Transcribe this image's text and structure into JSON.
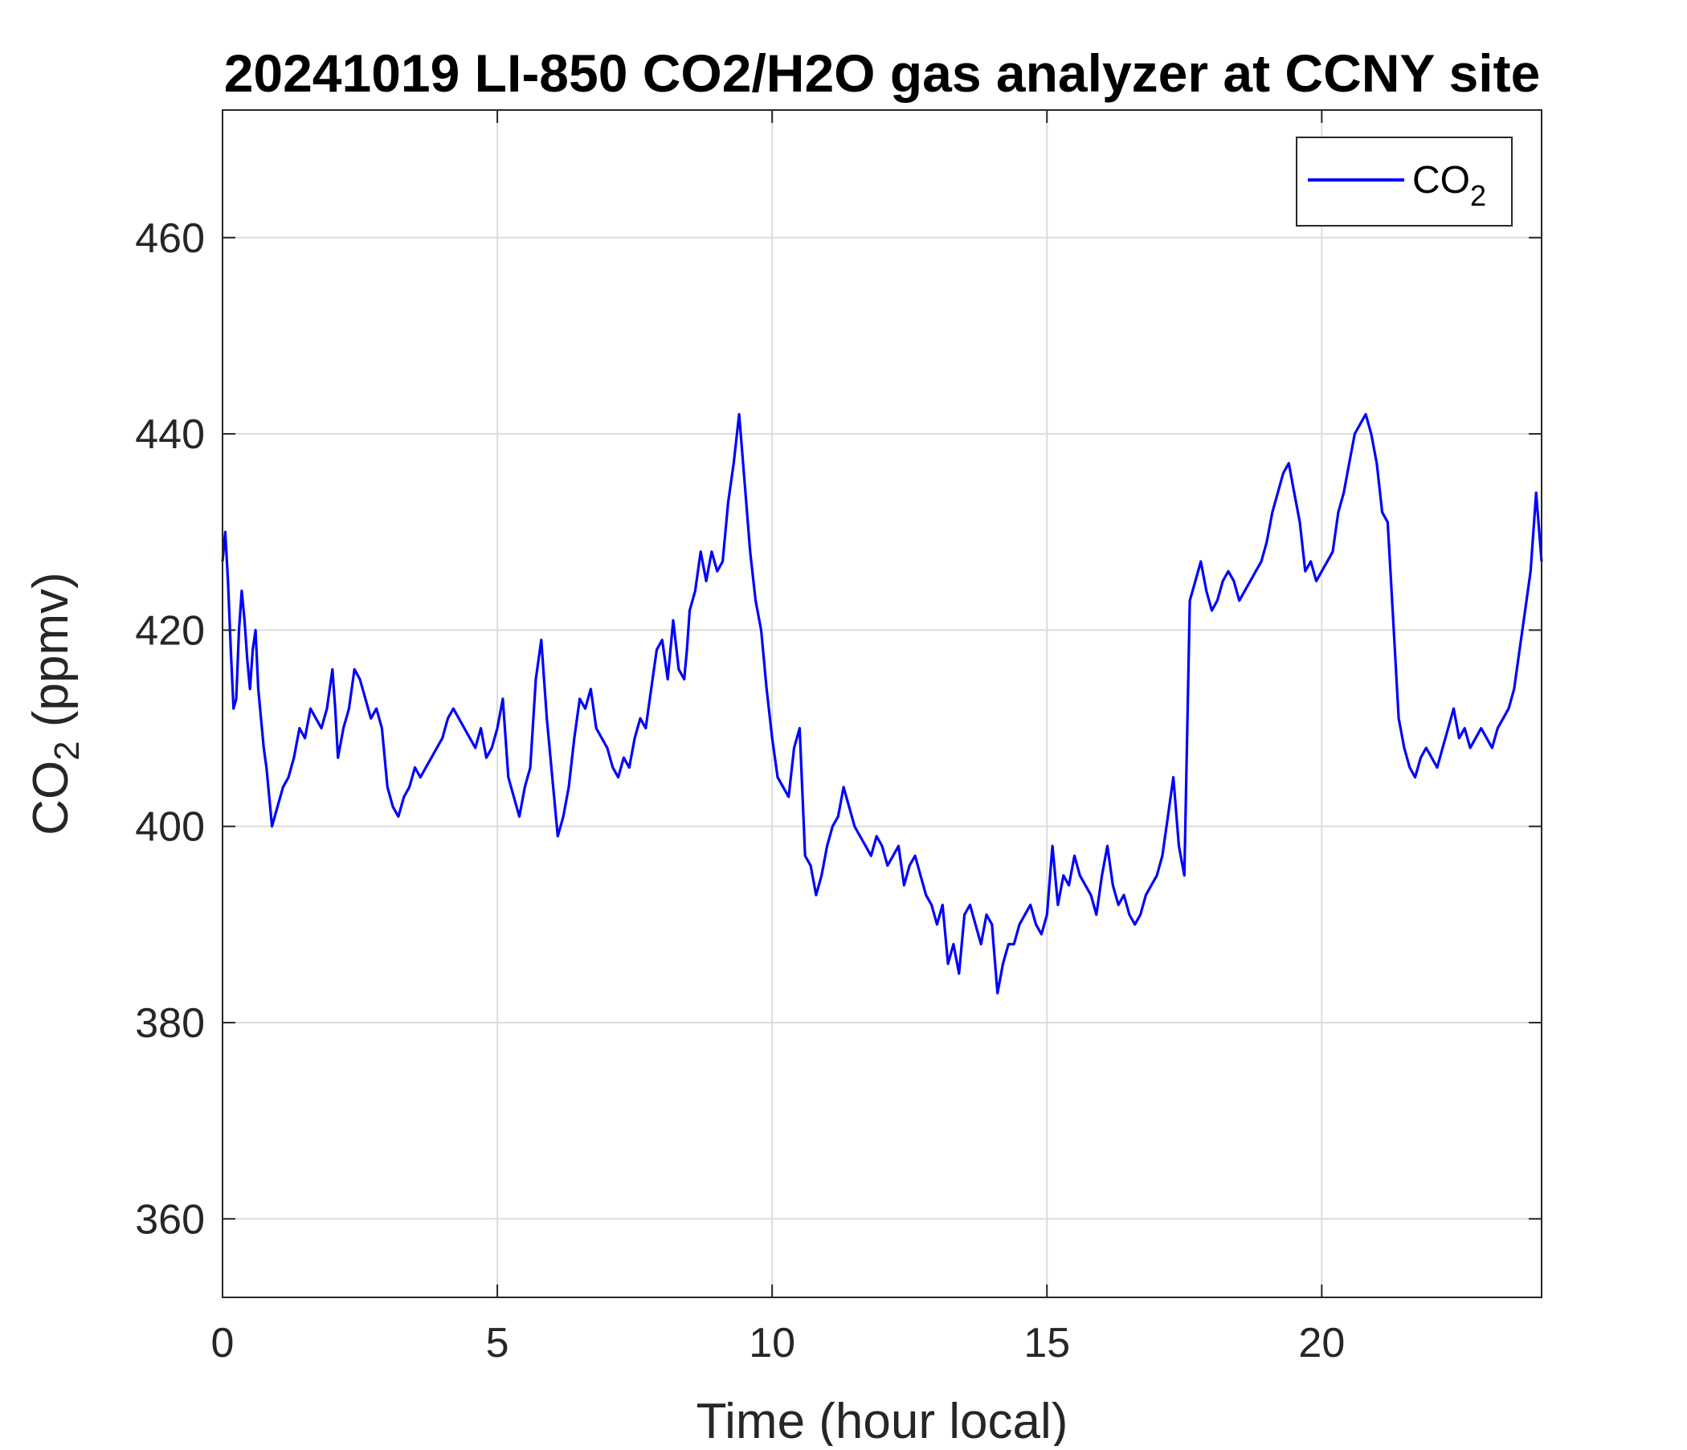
{
  "chart_data": {
    "type": "line",
    "title": "20241019 LI-850 CO2/H2O gas analyzer at CCNY site",
    "xlabel": "Time (hour local)",
    "ylabel": {
      "main": "CO",
      "sub": "2",
      "suffix": " (ppmv)"
    },
    "xlim": [
      0,
      24
    ],
    "ylim": [
      352,
      473
    ],
    "xticks": [
      0,
      5,
      10,
      15,
      20
    ],
    "yticks": [
      360,
      380,
      400,
      420,
      440,
      460
    ],
    "grid": true,
    "legend_position": "top-right",
    "colors": {
      "series": "#0000ff",
      "grid": "#dcdcdc",
      "axis": "#262626"
    },
    "series": [
      {
        "name": {
          "main": "CO",
          "sub": "2"
        },
        "x": [
          0.0,
          0.05,
          0.1,
          0.15,
          0.2,
          0.25,
          0.3,
          0.35,
          0.4,
          0.45,
          0.5,
          0.55,
          0.6,
          0.65,
          0.7,
          0.75,
          0.8,
          0.9,
          1.0,
          1.1,
          1.2,
          1.3,
          1.4,
          1.5,
          1.6,
          1.7,
          1.8,
          1.9,
          2.0,
          2.05,
          2.1,
          2.2,
          2.3,
          2.4,
          2.5,
          2.6,
          2.7,
          2.8,
          2.9,
          3.0,
          3.1,
          3.2,
          3.3,
          3.4,
          3.5,
          3.6,
          3.7,
          3.8,
          3.9,
          4.0,
          4.1,
          4.2,
          4.3,
          4.4,
          4.5,
          4.6,
          4.7,
          4.8,
          4.9,
          5.0,
          5.1,
          5.2,
          5.3,
          5.4,
          5.5,
          5.6,
          5.7,
          5.8,
          5.9,
          6.0,
          6.1,
          6.2,
          6.3,
          6.4,
          6.5,
          6.6,
          6.7,
          6.8,
          6.9,
          7.0,
          7.1,
          7.2,
          7.3,
          7.4,
          7.5,
          7.6,
          7.7,
          7.8,
          7.9,
          8.0,
          8.1,
          8.2,
          8.3,
          8.4,
          8.45,
          8.5,
          8.6,
          8.7,
          8.8,
          8.9,
          9.0,
          9.1,
          9.2,
          9.3,
          9.4,
          9.5,
          9.6,
          9.7,
          9.8,
          9.9,
          10.0,
          10.1,
          10.2,
          10.3,
          10.4,
          10.5,
          10.6,
          10.7,
          10.8,
          10.9,
          11.0,
          11.1,
          11.2,
          11.3,
          11.4,
          11.5,
          11.6,
          11.7,
          11.8,
          11.9,
          12.0,
          12.1,
          12.2,
          12.3,
          12.4,
          12.5,
          12.6,
          12.7,
          12.8,
          12.9,
          13.0,
          13.1,
          13.2,
          13.3,
          13.4,
          13.5,
          13.6,
          13.7,
          13.8,
          13.9,
          14.0,
          14.1,
          14.2,
          14.3,
          14.4,
          14.5,
          14.6,
          14.7,
          14.8,
          14.9,
          15.0,
          15.1,
          15.2,
          15.3,
          15.4,
          15.5,
          15.6,
          15.7,
          15.8,
          15.9,
          16.0,
          16.1,
          16.2,
          16.3,
          16.4,
          16.5,
          16.6,
          16.7,
          16.8,
          16.9,
          17.0,
          17.1,
          17.2,
          17.3,
          17.4,
          17.5,
          17.6,
          17.7,
          17.8,
          17.9,
          18.0,
          18.1,
          18.2,
          18.3,
          18.4,
          18.5,
          18.6,
          18.7,
          18.8,
          18.9,
          19.0,
          19.1,
          19.2,
          19.3,
          19.4,
          19.5,
          19.6,
          19.7,
          19.8,
          19.9,
          20.0,
          20.1,
          20.2,
          20.3,
          20.4,
          20.5,
          20.6,
          20.7,
          20.8,
          20.9,
          21.0,
          21.1,
          21.2,
          21.3,
          21.4,
          21.5,
          21.6,
          21.7,
          21.8,
          21.9,
          22.0,
          22.1,
          22.2,
          22.3,
          22.4,
          22.5,
          22.6,
          22.7,
          22.8,
          22.9,
          23.0,
          23.1,
          23.2,
          23.3,
          23.4,
          23.5,
          23.6,
          23.7,
          23.8,
          23.9,
          24.0
        ],
        "values": [
          427,
          430,
          425,
          418,
          412,
          413,
          420,
          424,
          421,
          417,
          414,
          418,
          420,
          414,
          411,
          408,
          406,
          400,
          402,
          404,
          405,
          407,
          410,
          409,
          412,
          411,
          410,
          412,
          416,
          412,
          407,
          410,
          412,
          416,
          415,
          413,
          411,
          412,
          410,
          404,
          402,
          401,
          403,
          404,
          406,
          405,
          406,
          407,
          408,
          409,
          411,
          412,
          411,
          410,
          409,
          408,
          410,
          407,
          408,
          410,
          413,
          405,
          403,
          401,
          404,
          406,
          415,
          419,
          411,
          405,
          399,
          401,
          404,
          409,
          413,
          412,
          414,
          410,
          409,
          408,
          406,
          405,
          407,
          406,
          409,
          411,
          410,
          414,
          418,
          419,
          415,
          421,
          416,
          415,
          418,
          422,
          424,
          428,
          425,
          428,
          426,
          427,
          433,
          437,
          442,
          435,
          428,
          423,
          420,
          414,
          409,
          405,
          404,
          403,
          408,
          410,
          397,
          396,
          393,
          395,
          398,
          400,
          401,
          404,
          402,
          400,
          399,
          398,
          397,
          399,
          398,
          396,
          397,
          398,
          394,
          396,
          397,
          395,
          393,
          392,
          390,
          392,
          386,
          388,
          385,
          391,
          392,
          390,
          388,
          391,
          390,
          383,
          386,
          388,
          388,
          390,
          391,
          392,
          390,
          389,
          391,
          398,
          392,
          395,
          394,
          397,
          395,
          394,
          393,
          391,
          395,
          398,
          394,
          392,
          393,
          391,
          390,
          391,
          393,
          394,
          395,
          397,
          401,
          405,
          398,
          395,
          423,
          425,
          427,
          424,
          422,
          423,
          425,
          426,
          425,
          423,
          424,
          425,
          426,
          427,
          429,
          432,
          434,
          436,
          437,
          434,
          431,
          426,
          427,
          425,
          426,
          427,
          428,
          432,
          434,
          437,
          440,
          441,
          442,
          440,
          437,
          432,
          431,
          421,
          411,
          408,
          406,
          405,
          407,
          408,
          407,
          406,
          408,
          410,
          412,
          409,
          410,
          408,
          409,
          410,
          409,
          408,
          410,
          411,
          412,
          414,
          418,
          422,
          426,
          434,
          427
        ]
      }
    ]
  }
}
